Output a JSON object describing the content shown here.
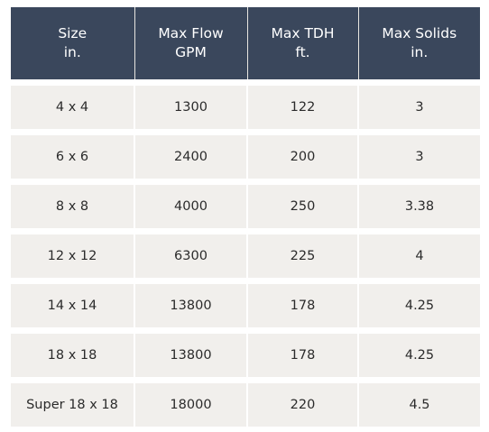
{
  "table": {
    "headers": [
      [
        "Size",
        "in."
      ],
      [
        "Max Flow",
        "GPM"
      ],
      [
        "Max TDH",
        "ft."
      ],
      [
        "Max Solids",
        "in."
      ]
    ],
    "rows": [
      [
        "4 x 4",
        "1300",
        "122",
        "3"
      ],
      [
        "6 x 6",
        "2400",
        "200",
        "3"
      ],
      [
        "8 x 8",
        "4000",
        "250",
        "3.38"
      ],
      [
        "12 x 12",
        "6300",
        "225",
        "4"
      ],
      [
        "14 x 14",
        "13800",
        "178",
        "4.25"
      ],
      [
        "18 x 18",
        "13800",
        "178",
        "4.25"
      ],
      [
        "Super 18 x 18",
        "18000",
        "220",
        "4.5"
      ]
    ]
  },
  "colors": {
    "header_background": "#3a475c",
    "header_text": "#ffffff",
    "row_background": "#f1efec",
    "cell_text": "#2b2b2b"
  }
}
